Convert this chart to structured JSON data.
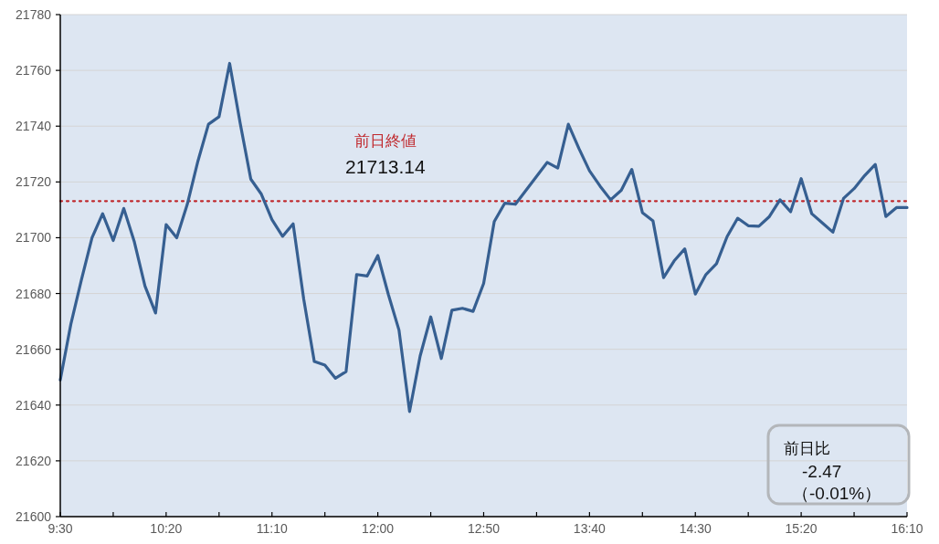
{
  "chart_data": {
    "type": "line",
    "x": [
      9.5,
      9.5833,
      9.6667,
      9.75,
      9.8333,
      9.9167,
      10,
      10.0833,
      10.1667,
      10.25,
      10.3333,
      10.4167,
      10.5,
      10.5833,
      10.6667,
      10.75,
      10.8333,
      10.9167,
      11,
      11.0833,
      11.1667,
      11.25,
      11.3333,
      11.4167,
      11.5,
      11.5833,
      11.6667,
      11.75,
      11.8333,
      11.9167,
      12,
      12.0833,
      12.1667,
      12.25,
      12.3333,
      12.4167,
      12.5,
      12.5833,
      12.6667,
      12.75,
      12.8333,
      12.9167,
      13,
      13.0833,
      13.1667,
      13.25,
      13.3333,
      13.4167,
      13.5,
      13.5833,
      13.6667,
      13.75,
      13.8333,
      13.9167,
      14,
      14.0833,
      14.1667,
      14.25,
      14.3333,
      14.4167,
      14.5,
      14.5833,
      14.6667,
      14.75,
      14.8333,
      14.9167,
      15,
      15.0833,
      15.1667,
      15.25,
      15.3333,
      15.4167,
      15.5,
      15.5833,
      15.6667,
      15.75,
      15.8333,
      15.9167,
      16,
      16.0833,
      16.1667
    ],
    "series": [
      {
        "color": "#365f91",
        "values": [
          21649,
          21669,
          21685,
          21700,
          21708.6,
          21699,
          21710.5,
          21698.5,
          21682.7,
          21673,
          21704.7,
          21700,
          21712,
          21727.4,
          21740.7,
          21743.4,
          21762.5,
          21741,
          21721,
          21715.6,
          21706.5,
          21700.5,
          21705,
          21678,
          21655.6,
          21654.3,
          21649.6,
          21652,
          21686.8,
          21686.3,
          21693.6,
          21679.6,
          21666.9,
          21637.7,
          21657.6,
          21671.6,
          21656.7,
          21674,
          21674.7,
          21673.6,
          21683.6,
          21705.8,
          21712.4,
          21712,
          21717,
          21722,
          21727,
          21725,
          21740.7,
          21732,
          21724,
          21718.5,
          21713.6,
          21717,
          21724.5,
          21709,
          21706,
          21685.7,
          21691.7,
          21696,
          21679.8,
          21686.8,
          21690.7,
          21700.4,
          21707,
          21704.3,
          21704.1,
          21707.6,
          21713.6,
          21709.3,
          21721.2,
          21708.6,
          21705.3,
          21702,
          21714.1,
          21717.6,
          21722.3,
          21726.3,
          21707.6,
          21710.8,
          21710.8
        ]
      }
    ],
    "xlim": [
      9.5,
      16.1667
    ],
    "xticks": [
      {
        "value": 9.5,
        "label": "9:30"
      },
      {
        "value": 9.9167,
        "label": null
      },
      {
        "value": 10.3333,
        "label": "10:20"
      },
      {
        "value": 10.75,
        "label": null
      },
      {
        "value": 11.1667,
        "label": "11:10"
      },
      {
        "value": 11.5833,
        "label": null
      },
      {
        "value": 12,
        "label": "12:00"
      },
      {
        "value": 12.4167,
        "label": null
      },
      {
        "value": 12.8333,
        "label": "12:50"
      },
      {
        "value": 13.25,
        "label": null
      },
      {
        "value": 13.6667,
        "label": "13:40"
      },
      {
        "value": 14.0833,
        "label": null
      },
      {
        "value": 14.5,
        "label": "14:30"
      },
      {
        "value": 14.9167,
        "label": null
      },
      {
        "value": 15.3333,
        "label": "15:20"
      },
      {
        "value": 15.75,
        "label": null
      },
      {
        "value": 16.1667,
        "label": "16:10"
      }
    ],
    "ylim": [
      21600,
      21780
    ],
    "yticks": [
      21600,
      21620,
      21640,
      21660,
      21680,
      21700,
      21720,
      21740,
      21760,
      21780
    ],
    "grid": "y",
    "ref_lines": [
      {
        "axis": "y",
        "value": 21713.14,
        "label": "前日終値",
        "color": "#c0282d",
        "line_style": "dotted"
      }
    ],
    "annotations": [
      "21713.14",
      "前日比",
      "-2.47",
      "（-0.01%）"
    ]
  }
}
